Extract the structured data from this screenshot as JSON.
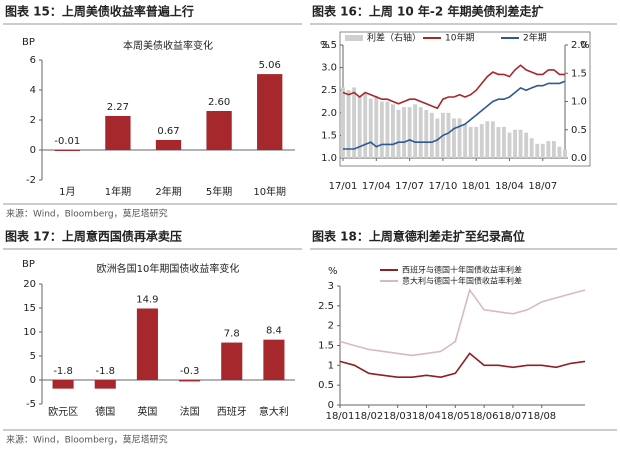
{
  "chart_data": [
    {
      "type": "bar",
      "heading": "图表 15：上周美债收益率普遍上行",
      "title": "本周美债收益率变化",
      "ylabel": "BP",
      "categories": [
        "1月",
        "1年期",
        "2年期",
        "5年期",
        "10年期"
      ],
      "values": [
        -0.01,
        2.27,
        0.67,
        2.6,
        5.06
      ],
      "value_labels": [
        "-0.01",
        "2.27",
        "0.67",
        "2.60",
        "5.06"
      ],
      "color": "#a6282c",
      "ylim": [
        -2,
        6
      ],
      "yticks": [
        -2,
        0,
        2,
        4,
        6
      ]
    },
    {
      "type": "line",
      "heading": "图表 16：上周 10 年-2 年期美债利差走扩",
      "ylabel": "%",
      "y2label": "%",
      "categories": [
        "17/01",
        null,
        null,
        null,
        null,
        null,
        "17/04",
        null,
        null,
        null,
        null,
        null,
        "17/07",
        null,
        null,
        null,
        null,
        null,
        "17/10",
        null,
        null,
        null,
        null,
        null,
        "18/01",
        null,
        null,
        null,
        null,
        null,
        "18/04",
        null,
        null,
        null,
        null,
        null,
        "18/07",
        null,
        null,
        null,
        null
      ],
      "series": [
        {
          "name": "利差（右轴）",
          "type": "bar",
          "axis": "y2",
          "color": "#cfcfcf",
          "values": [
            1.25,
            1.2,
            1.25,
            1.1,
            1.15,
            1.05,
            1.1,
            1.0,
            1.0,
            0.95,
            0.85,
            0.9,
            0.9,
            0.95,
            0.9,
            0.85,
            0.8,
            0.7,
            0.8,
            0.8,
            0.7,
            0.7,
            0.6,
            0.55,
            0.55,
            0.6,
            0.65,
            0.65,
            0.55,
            0.55,
            0.45,
            0.5,
            0.5,
            0.45,
            0.35,
            0.25,
            0.25,
            0.3,
            0.3,
            0.2,
            0.15
          ]
        },
        {
          "name": "10年期",
          "color": "#a6282c",
          "values": [
            2.45,
            2.4,
            2.45,
            2.35,
            2.45,
            2.4,
            2.35,
            2.3,
            2.3,
            2.25,
            2.2,
            2.25,
            2.3,
            2.3,
            2.25,
            2.2,
            2.15,
            2.1,
            2.3,
            2.35,
            2.35,
            2.4,
            2.35,
            2.4,
            2.5,
            2.65,
            2.8,
            2.9,
            2.85,
            2.85,
            2.8,
            2.95,
            3.05,
            2.95,
            2.9,
            2.85,
            2.85,
            2.95,
            2.95,
            2.85,
            2.85
          ]
        },
        {
          "name": "2年期",
          "color": "#2e5a94",
          "values": [
            1.2,
            1.2,
            1.2,
            1.25,
            1.3,
            1.35,
            1.25,
            1.3,
            1.3,
            1.3,
            1.35,
            1.35,
            1.4,
            1.35,
            1.35,
            1.35,
            1.35,
            1.4,
            1.5,
            1.55,
            1.65,
            1.7,
            1.75,
            1.85,
            1.95,
            2.05,
            2.15,
            2.25,
            2.3,
            2.3,
            2.35,
            2.45,
            2.55,
            2.5,
            2.55,
            2.6,
            2.6,
            2.65,
            2.65,
            2.65,
            2.7
          ]
        }
      ],
      "ylim": [
        1.0,
        3.5
      ],
      "yticks": [
        {
          "value": 1.0,
          "label": "1.0"
        },
        1.5,
        {
          "value": 2.0,
          "label": "2.0"
        },
        2.5,
        {
          "value": 3.0,
          "label": "3.0"
        },
        3.5
      ],
      "y2lim": [
        0.0,
        2.0
      ],
      "y2ticks": [
        {
          "value": 0.0,
          "label": "0.0"
        },
        0.5,
        {
          "value": 1.0,
          "label": "1.0"
        },
        1.5,
        {
          "value": 2.0,
          "label": "2.0"
        }
      ]
    },
    {
      "type": "bar",
      "heading": "图表 17：上周意西国债再承卖压",
      "title": "欧洲各国10年期国债收益率变化",
      "ylabel": "BP",
      "categories": [
        "欧元区",
        "德国",
        "英国",
        "法国",
        "西班牙",
        "意大利"
      ],
      "values": [
        -1.8,
        -1.8,
        14.9,
        -0.3,
        7.8,
        8.4
      ],
      "color": "#a6282c",
      "ylim": [
        -5,
        20
      ],
      "yticks": [
        -5,
        0,
        5,
        10,
        15,
        20
      ]
    },
    {
      "type": "line",
      "heading": "图表 18：上周意德利差走扩至纪录高位",
      "ylabel": "%",
      "categories": [
        "18/01",
        null,
        "18/02",
        null,
        "18/03",
        null,
        "18/04",
        null,
        "18/05",
        null,
        "18/06",
        null,
        "18/07",
        null,
        "18/08",
        null,
        null,
        null
      ],
      "series": [
        {
          "name": "西班牙与德国十年国债收益率利差",
          "color": "#8e1f24",
          "values": [
            1.1,
            1.0,
            0.8,
            0.75,
            0.7,
            0.7,
            0.75,
            0.7,
            0.8,
            1.3,
            1.0,
            1.0,
            0.95,
            1.0,
            1.0,
            0.95,
            1.05,
            1.1
          ]
        },
        {
          "name": "意大利与德国十年国债收益率利差",
          "color": "#d9b9c1",
          "values": [
            1.6,
            1.5,
            1.4,
            1.35,
            1.3,
            1.25,
            1.3,
            1.35,
            1.6,
            2.9,
            2.4,
            2.35,
            2.3,
            2.4,
            2.6,
            2.7,
            2.8,
            2.9
          ]
        }
      ],
      "ylim": [
        0,
        3
      ],
      "yticks": [
        0,
        0.5,
        1,
        1.5,
        2,
        2.5,
        3
      ]
    }
  ],
  "sources": [
    "来源：Wind，Bloomberg，莫尼塔研究",
    "来源：Wind，Bloomberg，莫尼塔研究"
  ]
}
